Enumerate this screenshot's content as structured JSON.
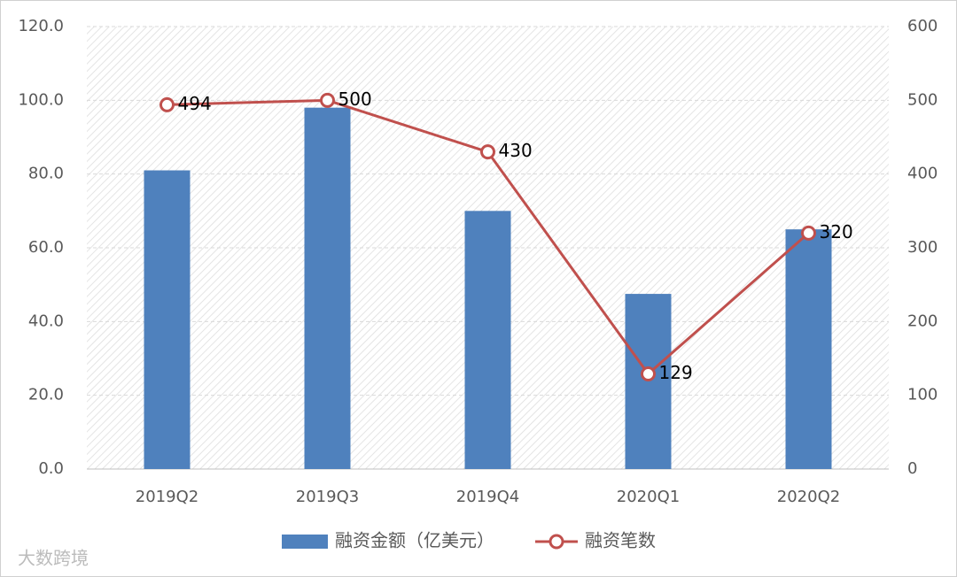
{
  "chart_data": {
    "type": "bar",
    "categories": [
      "2019Q2",
      "2019Q3",
      "2019Q4",
      "2020Q1",
      "2020Q2"
    ],
    "series": [
      {
        "name": "融资金额（亿美元）",
        "color": "#4f81bd",
        "values": [
          81,
          98,
          70,
          47.5,
          65
        ]
      },
      {
        "name": "融资笔数",
        "color": "#c0504d",
        "type": "line",
        "axis": "y2",
        "values": [
          494,
          500,
          430,
          129,
          320
        ]
      }
    ],
    "ylim": [
      0,
      120
    ],
    "yticks": [
      {
        "value": 0,
        "label": "0.0"
      },
      {
        "value": 20,
        "label": "20.0"
      },
      {
        "value": 40,
        "label": "40.0"
      },
      {
        "value": 60,
        "label": "60.0"
      },
      {
        "value": 80,
        "label": "80.0"
      },
      {
        "value": 100,
        "label": "100.0"
      },
      {
        "value": 120,
        "label": "120.0"
      }
    ],
    "y2lim": [
      0,
      600
    ],
    "y2ticks": [
      0,
      100,
      200,
      300,
      400,
      500,
      600
    ],
    "grid": true,
    "legend": "bottom"
  },
  "watermark": "大数跨境"
}
